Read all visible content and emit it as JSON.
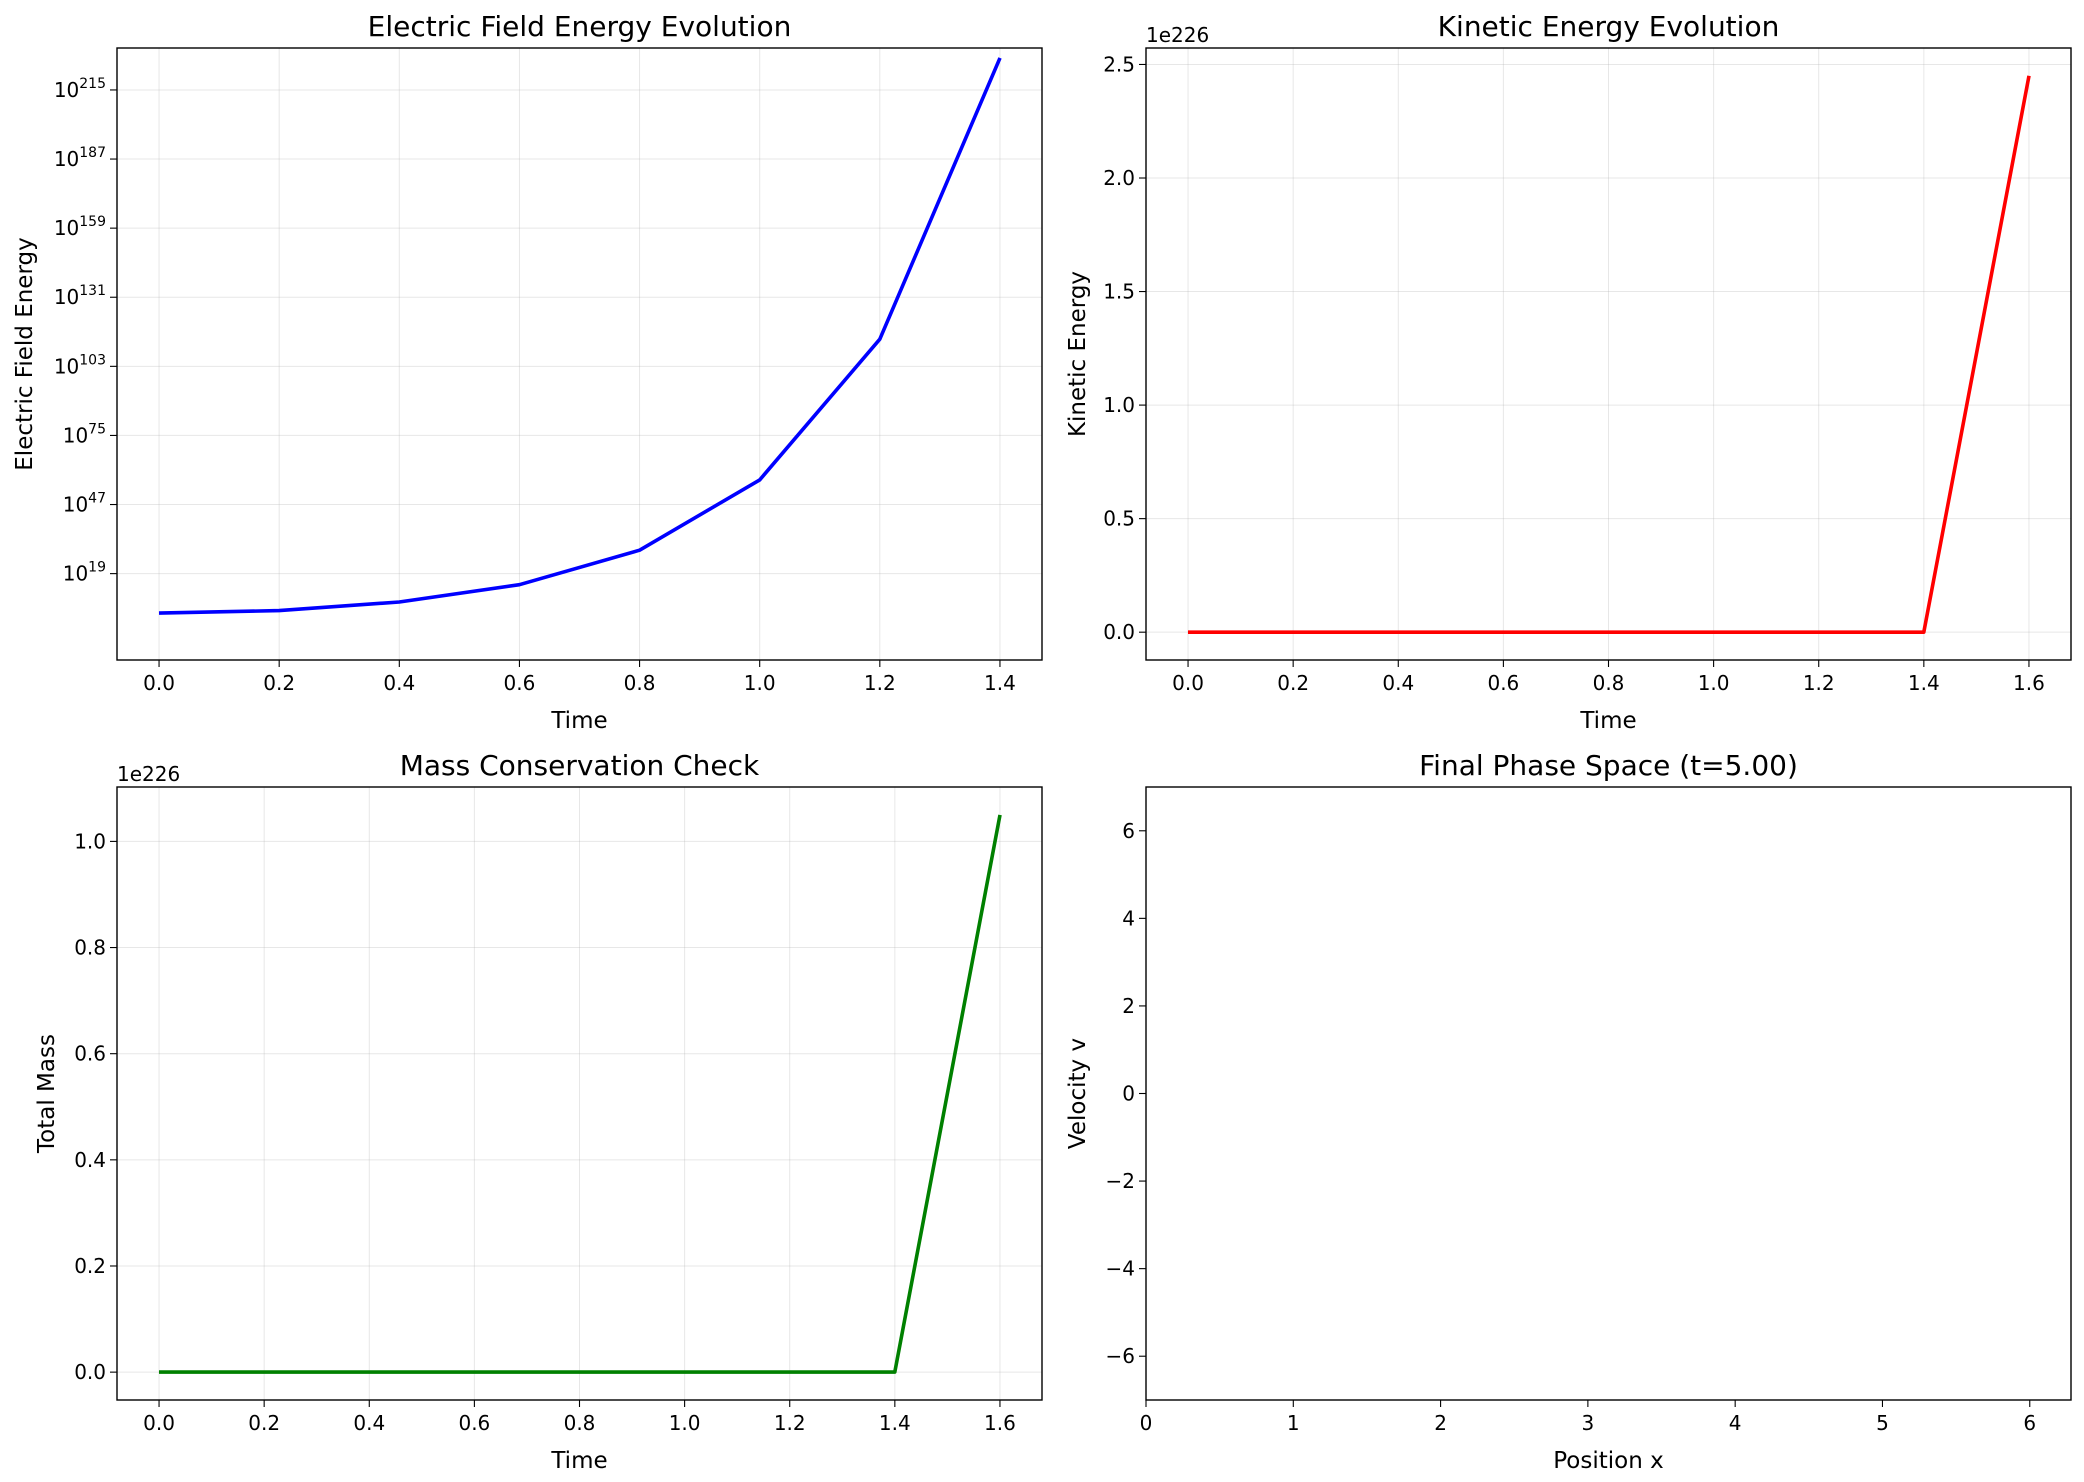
{
  "chart_data": [
    {
      "type": "line",
      "title": "Electric Field Energy Evolution",
      "xlabel": "Time",
      "ylabel": "Electric Field Energy",
      "xlim": [
        -0.07,
        1.47
      ],
      "x_ticks": [
        0.0,
        0.2,
        0.4,
        0.6,
        0.8,
        1.0,
        1.2,
        1.4
      ],
      "x_tick_labels": [
        "0.0",
        "0.2",
        "0.4",
        "0.6",
        "0.8",
        "1.0",
        "1.2",
        "1.4"
      ],
      "y_scale": "log",
      "ylim_exponent": [
        -16,
        232
      ],
      "y_tick_exponents": [
        19,
        47,
        75,
        103,
        131,
        159,
        187,
        215
      ],
      "y_tick_base": "10",
      "grid": true,
      "series": [
        {
          "color": "#0000ff",
          "x": [
            0.0,
            0.2,
            0.4,
            0.6,
            0.8,
            1.0,
            1.2,
            1.4
          ],
          "log10_y": [
            3,
            4,
            7.5,
            14.5,
            28.5,
            57,
            114,
            228
          ]
        }
      ]
    },
    {
      "type": "line",
      "title": "Kinetic Energy Evolution",
      "xlabel": "Time",
      "ylabel": "Kinetic Energy",
      "xlim": [
        -0.08,
        1.68
      ],
      "x_ticks": [
        0.0,
        0.2,
        0.4,
        0.6,
        0.8,
        1.0,
        1.2,
        1.4,
        1.6
      ],
      "x_tick_labels": [
        "0.0",
        "0.2",
        "0.4",
        "0.6",
        "0.8",
        "1.0",
        "1.2",
        "1.4",
        "1.6"
      ],
      "ylim": [
        -0.1225,
        2.5725
      ],
      "y_ticks": [
        0.0,
        0.5,
        1.0,
        1.5,
        2.0,
        2.5
      ],
      "y_tick_labels": [
        "0.0",
        "0.5",
        "1.0",
        "1.5",
        "2.0",
        "2.5"
      ],
      "y_offset_text": "1e226",
      "grid": true,
      "series": [
        {
          "color": "#ff0000",
          "x": [
            0.0,
            0.2,
            0.4,
            0.6,
            0.8,
            1.0,
            1.2,
            1.4,
            1.6
          ],
          "y": [
            0,
            0,
            0,
            0,
            0,
            0,
            0,
            0,
            2.45
          ]
        }
      ]
    },
    {
      "type": "line",
      "title": "Mass Conservation Check",
      "xlabel": "Time",
      "ylabel": "Total Mass",
      "xlim": [
        -0.08,
        1.68
      ],
      "x_ticks": [
        0.0,
        0.2,
        0.4,
        0.6,
        0.8,
        1.0,
        1.2,
        1.4,
        1.6
      ],
      "x_tick_labels": [
        "0.0",
        "0.2",
        "0.4",
        "0.6",
        "0.8",
        "1.0",
        "1.2",
        "1.4",
        "1.6"
      ],
      "ylim": [
        -0.0525,
        1.1025
      ],
      "y_ticks": [
        0.0,
        0.2,
        0.4,
        0.6,
        0.8,
        1.0
      ],
      "y_tick_labels": [
        "0.0",
        "0.2",
        "0.4",
        "0.6",
        "0.8",
        "1.0"
      ],
      "y_offset_text": "1e226",
      "grid": true,
      "series": [
        {
          "color": "#008000",
          "x": [
            0.0,
            0.2,
            0.4,
            0.6,
            0.8,
            1.0,
            1.2,
            1.4,
            1.6
          ],
          "y": [
            0,
            0,
            0,
            0,
            0,
            0,
            0,
            0,
            1.05
          ]
        }
      ]
    },
    {
      "type": "scatter",
      "title": "Final Phase Space (t=5.00)",
      "xlabel": "Position x",
      "ylabel": "Velocity v",
      "xlim": [
        0,
        6.28
      ],
      "x_ticks": [
        0,
        1,
        2,
        3,
        4,
        5,
        6
      ],
      "x_tick_labels": [
        "0",
        "1",
        "2",
        "3",
        "4",
        "5",
        "6"
      ],
      "ylim": [
        -7,
        7
      ],
      "y_ticks": [
        -6,
        -4,
        -2,
        0,
        2,
        4,
        6
      ],
      "y_tick_labels": [
        "−6",
        "−4",
        "−2",
        "0",
        "2",
        "4",
        "6"
      ],
      "grid": false,
      "series": []
    }
  ]
}
